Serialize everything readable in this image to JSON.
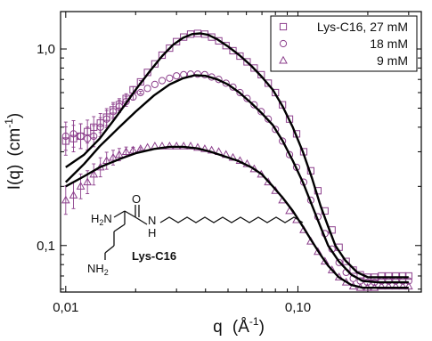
{
  "chart_data": {
    "type": "scatter",
    "xscale": "log",
    "yscale": "log",
    "xlim": [
      0.0095,
      0.34
    ],
    "ylim": [
      0.058,
      1.55
    ],
    "xlabel": {
      "main": "q",
      "unit_open": "(Å",
      "unit_exp": "-1",
      "unit_close": ")"
    },
    "ylabel": {
      "main": "I(q)",
      "unit_open": "(cm",
      "unit_exp": "-1",
      "unit_close": ")"
    },
    "x_ticks": [
      {
        "value": 0.01,
        "label": "0,01"
      },
      {
        "value": 0.1,
        "label": "0,10"
      }
    ],
    "y_ticks": [
      {
        "value": 0.1,
        "label": "0,1"
      },
      {
        "value": 1.0,
        "label": "1,0"
      }
    ],
    "legend_position": "top-right",
    "marker_color": "#8c3f8c",
    "fit_color": "#000000",
    "series": [
      {
        "name": "Lys-C16, 27 mM",
        "marker": "square",
        "points": [
          [
            0.01,
            0.34
          ],
          [
            0.0108,
            0.35
          ],
          [
            0.0116,
            0.36
          ],
          [
            0.0124,
            0.38
          ],
          [
            0.0132,
            0.4
          ],
          [
            0.0141,
            0.42
          ],
          [
            0.015,
            0.45
          ],
          [
            0.016,
            0.49
          ],
          [
            0.017,
            0.52
          ],
          [
            0.0182,
            0.56
          ],
          [
            0.0195,
            0.62
          ],
          [
            0.021,
            0.68
          ],
          [
            0.0225,
            0.76
          ],
          [
            0.0242,
            0.84
          ],
          [
            0.026,
            0.93
          ],
          [
            0.028,
            1.01
          ],
          [
            0.03,
            1.09
          ],
          [
            0.0322,
            1.15
          ],
          [
            0.0345,
            1.19
          ],
          [
            0.037,
            1.2
          ],
          [
            0.0397,
            1.19
          ],
          [
            0.0425,
            1.15
          ],
          [
            0.0456,
            1.1
          ],
          [
            0.049,
            1.04
          ],
          [
            0.0525,
            0.98
          ],
          [
            0.0563,
            0.92
          ],
          [
            0.0604,
            0.86
          ],
          [
            0.0648,
            0.8
          ],
          [
            0.0695,
            0.74
          ],
          [
            0.0745,
            0.67
          ],
          [
            0.08,
            0.6
          ],
          [
            0.0858,
            0.52
          ],
          [
            0.092,
            0.44
          ],
          [
            0.0987,
            0.37
          ],
          [
            0.1059,
            0.3
          ],
          [
            0.1136,
            0.24
          ],
          [
            0.1219,
            0.19
          ],
          [
            0.1307,
            0.15
          ],
          [
            0.1402,
            0.12
          ],
          [
            0.1504,
            0.098
          ],
          [
            0.1614,
            0.083
          ],
          [
            0.1731,
            0.075
          ],
          [
            0.1857,
            0.071
          ],
          [
            0.1992,
            0.069
          ],
          [
            0.2137,
            0.069
          ],
          [
            0.2292,
            0.07
          ],
          [
            0.2459,
            0.07
          ],
          [
            0.2638,
            0.07
          ],
          [
            0.283,
            0.07
          ],
          [
            0.3,
            0.07
          ]
        ]
      },
      {
        "name": "18 mM",
        "marker": "circle",
        "points": [
          [
            0.01,
            0.36
          ],
          [
            0.0108,
            0.37
          ],
          [
            0.0116,
            0.36
          ],
          [
            0.0124,
            0.35
          ],
          [
            0.0132,
            0.36
          ],
          [
            0.0141,
            0.4
          ],
          [
            0.015,
            0.44
          ],
          [
            0.016,
            0.48
          ],
          [
            0.017,
            0.51
          ],
          [
            0.0182,
            0.54
          ],
          [
            0.0195,
            0.57
          ],
          [
            0.021,
            0.6
          ],
          [
            0.0225,
            0.63
          ],
          [
            0.0242,
            0.66
          ],
          [
            0.026,
            0.69
          ],
          [
            0.028,
            0.71
          ],
          [
            0.03,
            0.73
          ],
          [
            0.0322,
            0.74
          ],
          [
            0.0345,
            0.745
          ],
          [
            0.037,
            0.745
          ],
          [
            0.0397,
            0.74
          ],
          [
            0.0425,
            0.72
          ],
          [
            0.0456,
            0.7
          ],
          [
            0.049,
            0.67
          ],
          [
            0.0525,
            0.64
          ],
          [
            0.0563,
            0.6
          ],
          [
            0.0604,
            0.56
          ],
          [
            0.0648,
            0.52
          ],
          [
            0.0695,
            0.48
          ],
          [
            0.0745,
            0.44
          ],
          [
            0.08,
            0.39
          ],
          [
            0.0858,
            0.34
          ],
          [
            0.092,
            0.29
          ],
          [
            0.0987,
            0.25
          ],
          [
            0.1059,
            0.21
          ],
          [
            0.1136,
            0.17
          ],
          [
            0.1219,
            0.14
          ],
          [
            0.1307,
            0.115
          ],
          [
            0.1402,
            0.096
          ],
          [
            0.1504,
            0.082
          ],
          [
            0.1614,
            0.073
          ],
          [
            0.1731,
            0.068
          ],
          [
            0.1857,
            0.066
          ],
          [
            0.1992,
            0.065
          ],
          [
            0.2137,
            0.065
          ],
          [
            0.2292,
            0.066
          ],
          [
            0.2459,
            0.066
          ],
          [
            0.2638,
            0.066
          ],
          [
            0.283,
            0.066
          ],
          [
            0.3,
            0.066
          ]
        ]
      },
      {
        "name": "9 mM",
        "marker": "triangle",
        "points": [
          [
            0.01,
            0.17
          ],
          [
            0.0108,
            0.18
          ],
          [
            0.0116,
            0.2
          ],
          [
            0.0124,
            0.21
          ],
          [
            0.0132,
            0.23
          ],
          [
            0.0141,
            0.25
          ],
          [
            0.015,
            0.27
          ],
          [
            0.016,
            0.28
          ],
          [
            0.017,
            0.29
          ],
          [
            0.0182,
            0.3
          ],
          [
            0.0195,
            0.305
          ],
          [
            0.021,
            0.31
          ],
          [
            0.0225,
            0.315
          ],
          [
            0.0242,
            0.32
          ],
          [
            0.026,
            0.32
          ],
          [
            0.028,
            0.32
          ],
          [
            0.03,
            0.32
          ],
          [
            0.0322,
            0.32
          ],
          [
            0.0345,
            0.32
          ],
          [
            0.037,
            0.315
          ],
          [
            0.0397,
            0.31
          ],
          [
            0.0425,
            0.305
          ],
          [
            0.0456,
            0.3
          ],
          [
            0.049,
            0.29
          ],
          [
            0.0525,
            0.28
          ],
          [
            0.0563,
            0.27
          ],
          [
            0.0604,
            0.26
          ],
          [
            0.0648,
            0.245
          ],
          [
            0.0695,
            0.23
          ],
          [
            0.0745,
            0.21
          ],
          [
            0.08,
            0.19
          ],
          [
            0.0858,
            0.17
          ],
          [
            0.092,
            0.15
          ],
          [
            0.0987,
            0.135
          ],
          [
            0.1059,
            0.12
          ],
          [
            0.1136,
            0.105
          ],
          [
            0.1219,
            0.093
          ],
          [
            0.1307,
            0.083
          ],
          [
            0.1402,
            0.075
          ],
          [
            0.1504,
            0.069
          ],
          [
            0.1614,
            0.065
          ],
          [
            0.1731,
            0.062
          ],
          [
            0.1857,
            0.061
          ],
          [
            0.1992,
            0.061
          ],
          [
            0.2137,
            0.061
          ],
          [
            0.2292,
            0.062
          ],
          [
            0.2459,
            0.062
          ],
          [
            0.2638,
            0.062
          ],
          [
            0.283,
            0.062
          ],
          [
            0.3,
            0.062
          ]
        ]
      }
    ],
    "fits": [
      {
        "series": "Lys-C16, 27 mM",
        "points": [
          [
            0.01,
            0.25
          ],
          [
            0.012,
            0.29
          ],
          [
            0.014,
            0.35
          ],
          [
            0.016,
            0.43
          ],
          [
            0.018,
            0.52
          ],
          [
            0.02,
            0.62
          ],
          [
            0.023,
            0.77
          ],
          [
            0.026,
            0.92
          ],
          [
            0.029,
            1.05
          ],
          [
            0.032,
            1.14
          ],
          [
            0.035,
            1.19
          ],
          [
            0.038,
            1.2
          ],
          [
            0.041,
            1.18
          ],
          [
            0.045,
            1.12
          ],
          [
            0.05,
            1.03
          ],
          [
            0.056,
            0.93
          ],
          [
            0.063,
            0.82
          ],
          [
            0.07,
            0.72
          ],
          [
            0.078,
            0.62
          ],
          [
            0.086,
            0.51
          ],
          [
            0.095,
            0.4
          ],
          [
            0.105,
            0.3
          ],
          [
            0.115,
            0.22
          ],
          [
            0.125,
            0.16
          ],
          [
            0.135,
            0.125
          ],
          [
            0.145,
            0.1
          ],
          [
            0.16,
            0.084
          ],
          [
            0.18,
            0.073
          ],
          [
            0.2,
            0.069
          ],
          [
            0.24,
            0.069
          ],
          [
            0.3,
            0.069
          ]
        ]
      },
      {
        "series": "18 mM",
        "points": [
          [
            0.01,
            0.21
          ],
          [
            0.012,
            0.26
          ],
          [
            0.014,
            0.32
          ],
          [
            0.017,
            0.4
          ],
          [
            0.02,
            0.48
          ],
          [
            0.024,
            0.58
          ],
          [
            0.028,
            0.66
          ],
          [
            0.032,
            0.71
          ],
          [
            0.036,
            0.735
          ],
          [
            0.04,
            0.73
          ],
          [
            0.045,
            0.7
          ],
          [
            0.05,
            0.66
          ],
          [
            0.056,
            0.6
          ],
          [
            0.063,
            0.53
          ],
          [
            0.07,
            0.47
          ],
          [
            0.078,
            0.41
          ],
          [
            0.086,
            0.34
          ],
          [
            0.095,
            0.27
          ],
          [
            0.105,
            0.21
          ],
          [
            0.115,
            0.16
          ],
          [
            0.125,
            0.125
          ],
          [
            0.135,
            0.1
          ],
          [
            0.15,
            0.083
          ],
          [
            0.17,
            0.071
          ],
          [
            0.19,
            0.066
          ],
          [
            0.22,
            0.065
          ],
          [
            0.3,
            0.065
          ]
        ]
      },
      {
        "series": "9 mM",
        "points": [
          [
            0.01,
            0.2
          ],
          [
            0.012,
            0.225
          ],
          [
            0.014,
            0.25
          ],
          [
            0.017,
            0.275
          ],
          [
            0.02,
            0.295
          ],
          [
            0.024,
            0.31
          ],
          [
            0.028,
            0.318
          ],
          [
            0.032,
            0.318
          ],
          [
            0.037,
            0.312
          ],
          [
            0.042,
            0.3
          ],
          [
            0.048,
            0.285
          ],
          [
            0.055,
            0.27
          ],
          [
            0.063,
            0.25
          ],
          [
            0.07,
            0.23
          ],
          [
            0.078,
            0.2
          ],
          [
            0.086,
            0.175
          ],
          [
            0.095,
            0.15
          ],
          [
            0.105,
            0.125
          ],
          [
            0.115,
            0.105
          ],
          [
            0.125,
            0.09
          ],
          [
            0.135,
            0.079
          ],
          [
            0.15,
            0.069
          ],
          [
            0.17,
            0.063
          ],
          [
            0.19,
            0.061
          ],
          [
            0.22,
            0.061
          ],
          [
            0.3,
            0.061
          ]
        ]
      }
    ],
    "inset": {
      "name": "Lys-C16",
      "atoms": {
        "amine1": "H",
        "amine1_sub": "2",
        "amine1_n": "N",
        "carbonyl": "O",
        "amide_n": "N",
        "amide_h": "H",
        "amine2": "NH",
        "amine2_sub": "2"
      }
    }
  }
}
